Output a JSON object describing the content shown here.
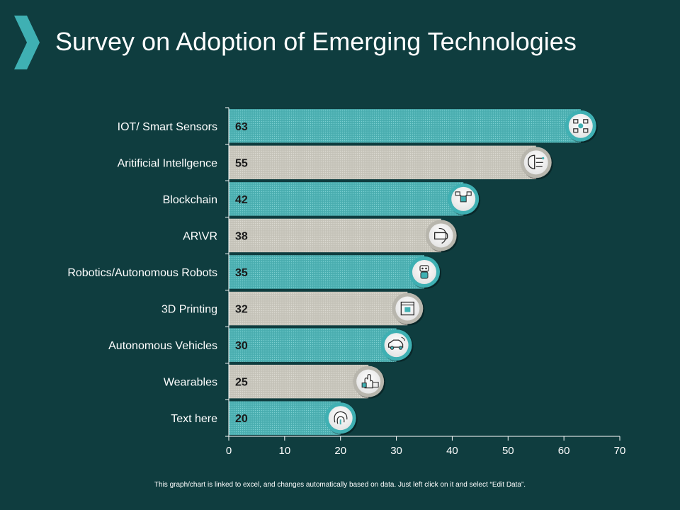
{
  "slide": {
    "title": "Survey on Adoption of Emerging Technologies",
    "footnote": "This graph/chart is linked to excel,  and changes automatically based on data. Just left click on it and select “Edit Data”."
  },
  "colors": {
    "background": "#0f3d3f",
    "teal_bar": "#4fb3b5",
    "gray_bar": "#c9c7bd",
    "accent": "#3fb0b3",
    "axis": "#ffffff"
  },
  "chart_data": {
    "type": "bar",
    "orientation": "horizontal",
    "title": "Survey on Adoption of Emerging Technologies",
    "xlabel": "",
    "ylabel": "",
    "categories": [
      "IOT/ Smart Sensors",
      "Aritificial Intellgence",
      "Blockchain",
      "AR\\VR",
      "Robotics/Autonomous Robots",
      "3D Printing",
      "Autonomous Vehicles",
      "Wearables",
      "Text here"
    ],
    "values": [
      63,
      55,
      42,
      38,
      35,
      32,
      30,
      25,
      20
    ],
    "value_labels": [
      "63",
      "55",
      "42",
      "38",
      "35",
      "32",
      "30",
      "25",
      "20"
    ],
    "bar_colors": [
      "teal",
      "gray",
      "teal",
      "gray",
      "teal",
      "gray",
      "teal",
      "gray",
      "teal"
    ],
    "icons": [
      "iot-sensors-icon",
      "ai-brain-icon",
      "blockchain-icon",
      "vr-headset-icon",
      "robot-icon",
      "3d-printer-icon",
      "autonomous-car-icon",
      "wearable-hand-icon",
      "fingerprint-icon"
    ],
    "xlim": [
      0,
      70
    ],
    "xticks": [
      0,
      10,
      20,
      30,
      40,
      50,
      60,
      70
    ],
    "grid": false,
    "legend": "none"
  }
}
